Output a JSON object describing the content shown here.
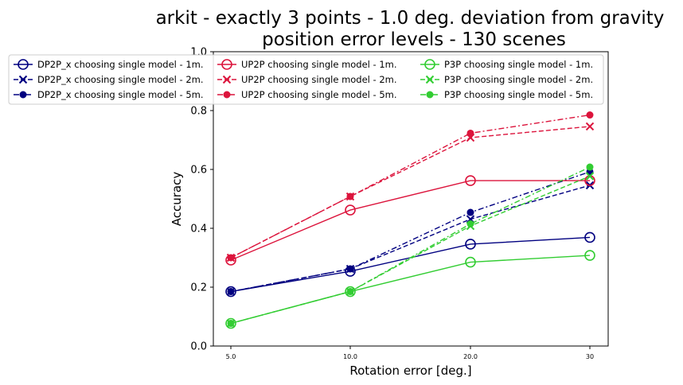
{
  "chart_data": {
    "type": "line",
    "title": "arkit - exactly 3 points - 1.0 deg. deviation from gravity",
    "subtitle": "position error levels - 130 scenes",
    "xlabel": "Rotation error [deg.]",
    "ylabel": "Accuracy",
    "categories": [
      "5.0",
      "10.0",
      "20.0",
      "30"
    ],
    "ylim": [
      0,
      1.0
    ],
    "yticks": [
      "0.0",
      "0.2",
      "0.4",
      "0.6",
      "0.8",
      "1.0"
    ],
    "grid": false,
    "legend_position": "top-left",
    "series": [
      {
        "name": "DP2P_x choosing single model - 1m.",
        "color": "#000080",
        "marker": "open-circle",
        "linestyle": "solid",
        "values": [
          0.185,
          0.254,
          0.346,
          0.369
        ]
      },
      {
        "name": "DP2P_x choosing single model - 2m.",
        "color": "#000080",
        "marker": "x",
        "linestyle": "dashed",
        "values": [
          0.185,
          0.262,
          0.431,
          0.546
        ]
      },
      {
        "name": "DP2P_x choosing single model - 5m.",
        "color": "#000080",
        "marker": "dot",
        "linestyle": "dashdot",
        "values": [
          0.185,
          0.262,
          0.454,
          0.592
        ]
      },
      {
        "name": "UP2P choosing single model - 1m.",
        "color": "#DC143C",
        "marker": "open-circle",
        "linestyle": "solid",
        "values": [
          0.292,
          0.462,
          0.562,
          0.562
        ]
      },
      {
        "name": "UP2P choosing single model - 2m.",
        "color": "#DC143C",
        "marker": "x",
        "linestyle": "dashed",
        "values": [
          0.3,
          0.508,
          0.708,
          0.746
        ]
      },
      {
        "name": "UP2P choosing single model - 5m.",
        "color": "#DC143C",
        "marker": "dot",
        "linestyle": "dashdot",
        "values": [
          0.3,
          0.508,
          0.723,
          0.785
        ]
      },
      {
        "name": "P3P choosing single model - 1m.",
        "color": "#32CD32",
        "marker": "open-circle",
        "linestyle": "solid",
        "values": [
          0.077,
          0.185,
          0.285,
          0.308
        ]
      },
      {
        "name": "P3P choosing single model - 2m.",
        "color": "#32CD32",
        "marker": "x",
        "linestyle": "dashed",
        "values": [
          0.077,
          0.185,
          0.408,
          0.577
        ]
      },
      {
        "name": "P3P choosing single model - 5m.",
        "color": "#32CD32",
        "marker": "dot",
        "linestyle": "dashdot",
        "values": [
          0.077,
          0.185,
          0.415,
          0.608
        ]
      }
    ]
  }
}
